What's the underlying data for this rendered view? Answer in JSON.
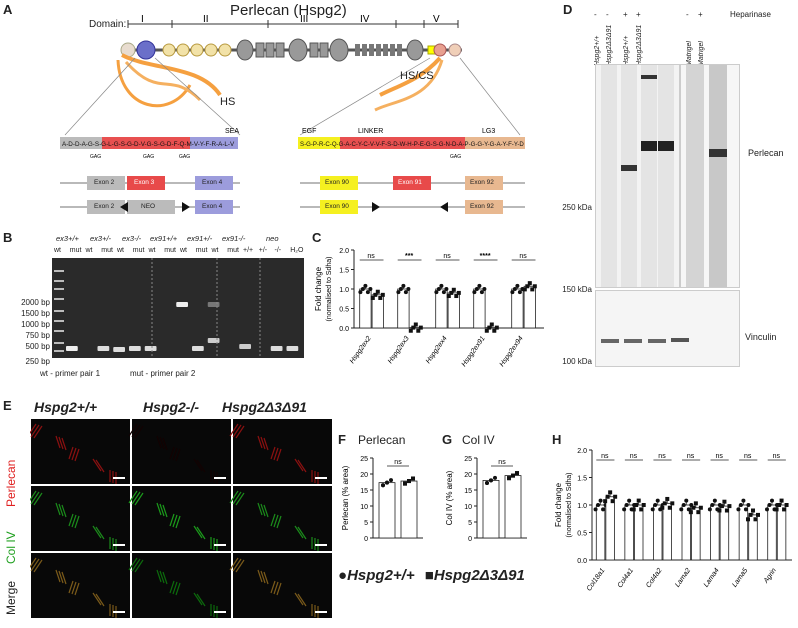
{
  "panels": {
    "a": "A",
    "b": "B",
    "c": "C",
    "d": "D",
    "e": "E",
    "f": "F",
    "g": "G",
    "h": "H"
  },
  "panelA": {
    "title": "Perlecan (Hspg2)",
    "domain_label": "Domain:",
    "domains": [
      "I",
      "II",
      "III",
      "IV",
      "V"
    ],
    "hs": "HS",
    "hscs": "HS/CS",
    "seq_left": "A-D-D-A-G-S-G-L-G-S-G-D-V-G-S-G-D-F-Q-M-V-Y-F-R-A-L-V",
    "seq_right": "S-G-P-R-C-Q-G-A-C-Y-C-V-V-F-S-D-W-H-P-E-G-S-G-N-D-A-P-G-G-Y-G-A-Y-F-Y-D",
    "sea": "SEA",
    "egf": "EGF",
    "linker": "LINKER",
    "lg3": "LG3",
    "gag": "GAG",
    "exons_top_left": [
      "Exon 2",
      "Exon 3",
      "Exon 4"
    ],
    "exons_bottom_left": [
      "Exon 2",
      "NEO",
      "Exon 4"
    ],
    "exons_top_right": [
      "Exon 90",
      "Exon 91",
      "Exon 92"
    ],
    "exons_bottom_right": [
      "Exon 90",
      "Exon 92"
    ]
  },
  "panelB": {
    "groups": [
      "ex3+/+",
      "ex3+/-",
      "ex3-/-",
      "ex91+/+",
      "ex91+/-",
      "ex91-/-",
      "neo"
    ],
    "lanes": [
      "wt",
      "mut",
      "wt",
      "mut",
      "wt",
      "mut",
      "wt",
      "mut",
      "wt",
      "mut",
      "wt",
      "mut",
      "+/+",
      "+/-",
      "-/-",
      "H₂O"
    ],
    "markers": [
      "2000 bp",
      "1500 bp",
      "1000 bp",
      "750 bp",
      "500 bp",
      "250 bp"
    ],
    "legend_a": "wt - primer pair 1",
    "legend_b": "mut - primer pair 2"
  },
  "panelC": {
    "ylabel": "Fold change",
    "ylabel2": "(normalised to Sdha)",
    "chart_data": {
      "type": "bar",
      "categories": [
        "Hspg2ex2",
        "Hspg2ex3",
        "Hspg2ex4",
        "Hspg2ex91",
        "Hspg2ex94"
      ],
      "series": [
        {
          "name": "Hspg2+/+",
          "values": [
            1.0,
            1.0,
            1.0,
            1.0,
            1.0
          ]
        },
        {
          "name": "Hspg2Δ3Δ91",
          "values": [
            0.85,
            0.01,
            0.9,
            0.01,
            1.07
          ]
        }
      ],
      "significance": [
        "ns",
        "***",
        "ns",
        "****",
        "ns"
      ],
      "yticks": [
        "0.0",
        "0.5",
        "1.0",
        "1.5",
        "2.0"
      ],
      "ylim": [
        0,
        2.0
      ]
    }
  },
  "panelD": {
    "heparinase": "Heparinase",
    "signs": [
      "-",
      "-",
      "+",
      "+",
      "-",
      "+"
    ],
    "lane_labels": [
      "Hspg2+/+",
      "Hspg2Δ3Δ91",
      "Hspg2+/+",
      "Hspg2Δ3Δ91",
      "Matrigel",
      "Matrigel"
    ],
    "markers": [
      "250 kDa",
      "150 kDa",
      "100 kDa"
    ],
    "perlecan": "Perlecan",
    "vinculin": "Vinculin"
  },
  "panelE": {
    "cols": [
      "Hspg2+/+",
      "Hspg2-/-",
      "Hspg2Δ3Δ91"
    ],
    "rows": [
      "Perlecan",
      "Col IV",
      "Merge"
    ]
  },
  "panelF": {
    "title": "Perlecan",
    "ylabel": "Perlecan (% area)",
    "chart_data": {
      "type": "bar",
      "categories": [
        "Hspg2+/+",
        "Hspg2Δ3Δ91"
      ],
      "values": [
        17.3,
        17.8
      ],
      "significance": "ns",
      "yticks": [
        "0",
        "5",
        "10",
        "15",
        "20",
        "25"
      ],
      "ylim": [
        0,
        25
      ]
    }
  },
  "panelG": {
    "title": "Col IV",
    "ylabel": "Col IV (% area)",
    "chart_data": {
      "type": "bar",
      "categories": [
        "Hspg2+/+",
        "Hspg2Δ3Δ91"
      ],
      "values": [
        18.0,
        19.5
      ],
      "significance": "ns",
      "yticks": [
        "0",
        "5",
        "10",
        "15",
        "20",
        "25"
      ],
      "ylim": [
        0,
        25
      ]
    }
  },
  "legend": {
    "wt": "Hspg2+/+",
    "mut": "Hspg2Δ3Δ91"
  },
  "panelH": {
    "ylabel": "Fold change",
    "ylabel2": "(normalised to Sdha)",
    "chart_data": {
      "type": "bar",
      "categories": [
        "Col18a1",
        "Col4a1",
        "Col4a2",
        "Lama2",
        "Lama4",
        "Lama5",
        "Agrin"
      ],
      "series": [
        {
          "name": "Hspg2+/+",
          "values": [
            1.0,
            1.0,
            1.0,
            1.0,
            1.0,
            1.0,
            1.0
          ]
        },
        {
          "name": "Hspg2Δ3Δ91",
          "values": [
            1.15,
            1.0,
            1.03,
            0.95,
            0.98,
            0.82,
            1.0
          ]
        }
      ],
      "significance": [
        "ns",
        "ns",
        "ns",
        "ns",
        "ns",
        "ns",
        "ns"
      ],
      "yticks": [
        "0.0",
        "0.5",
        "1.0",
        "1.5",
        "2.0"
      ],
      "ylim": [
        0,
        2.0
      ]
    }
  }
}
